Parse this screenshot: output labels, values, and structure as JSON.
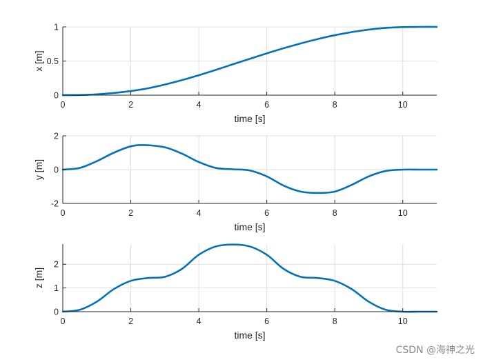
{
  "chart_data": [
    {
      "type": "line",
      "xlabel": "time [s]",
      "ylabel": "x [m]",
      "xlim": [
        0,
        11
      ],
      "ylim": [
        0,
        1
      ],
      "xticks": [
        0,
        2,
        4,
        6,
        8,
        10
      ],
      "yticks": [
        0,
        0.5,
        1
      ],
      "grid": true,
      "series": [
        {
          "color": "#d95319",
          "x": [
            0,
            0.5,
            1,
            1.5,
            2,
            2.5,
            3,
            3.5,
            4,
            4.5,
            5,
            5.5,
            6,
            6.5,
            7,
            7.5,
            8,
            8.5,
            9,
            9.5,
            10,
            10.5,
            11
          ],
          "y": [
            0,
            0.002,
            0.012,
            0.032,
            0.06,
            0.1,
            0.155,
            0.22,
            0.292,
            0.37,
            0.452,
            0.532,
            0.612,
            0.688,
            0.758,
            0.822,
            0.878,
            0.924,
            0.96,
            0.985,
            0.997,
            1.0,
            1.0
          ]
        },
        {
          "color": "#0072bd",
          "x": [
            0,
            0.5,
            1,
            1.5,
            2,
            2.5,
            3,
            3.5,
            4,
            4.5,
            5,
            5.5,
            6,
            6.5,
            7,
            7.5,
            8,
            8.5,
            9,
            9.5,
            10,
            10.5,
            11
          ],
          "y": [
            0,
            0.002,
            0.012,
            0.032,
            0.06,
            0.1,
            0.155,
            0.22,
            0.292,
            0.37,
            0.452,
            0.532,
            0.612,
            0.688,
            0.758,
            0.822,
            0.878,
            0.924,
            0.96,
            0.985,
            0.997,
            1.0,
            1.0
          ]
        }
      ]
    },
    {
      "type": "line",
      "xlabel": "time [s]",
      "ylabel": "y [m]",
      "xlim": [
        0,
        11
      ],
      "ylim": [
        -2,
        2
      ],
      "xticks": [
        0,
        2,
        4,
        6,
        8,
        10
      ],
      "yticks": [
        -2,
        0,
        2
      ],
      "grid": true,
      "series": [
        {
          "color": "#d95319",
          "x": [
            0,
            0.5,
            1,
            1.5,
            2,
            2.4,
            3,
            3.5,
            4,
            4.5,
            5,
            5.5,
            6,
            6.5,
            7,
            7.5,
            8,
            8.5,
            9,
            9.5,
            10,
            10.5,
            11
          ],
          "y": [
            0,
            0.1,
            0.5,
            1.0,
            1.38,
            1.45,
            1.32,
            0.95,
            0.45,
            0.1,
            0.02,
            -0.05,
            -0.4,
            -0.95,
            -1.3,
            -1.38,
            -1.3,
            -0.9,
            -0.4,
            -0.08,
            0,
            0,
            0
          ]
        },
        {
          "color": "#0072bd",
          "x": [
            0,
            0.5,
            1,
            1.5,
            2,
            2.4,
            3,
            3.5,
            4,
            4.5,
            5,
            5.5,
            6,
            6.5,
            7,
            7.5,
            8,
            8.5,
            9,
            9.5,
            10,
            10.5,
            11
          ],
          "y": [
            0,
            0.1,
            0.5,
            1.0,
            1.38,
            1.45,
            1.32,
            0.95,
            0.45,
            0.1,
            0.02,
            -0.05,
            -0.4,
            -0.95,
            -1.3,
            -1.38,
            -1.3,
            -0.9,
            -0.4,
            -0.08,
            0,
            0,
            0
          ]
        }
      ]
    },
    {
      "type": "line",
      "xlabel": "time [s]",
      "ylabel": "z [m]",
      "xlim": [
        0,
        11
      ],
      "ylim": [
        0,
        2.85
      ],
      "xticks": [
        0,
        2,
        4,
        6,
        8,
        10
      ],
      "yticks": [
        0,
        1,
        2
      ],
      "grid": true,
      "series": [
        {
          "color": "#d95319",
          "x": [
            0,
            0.5,
            1,
            1.5,
            2,
            2.5,
            3,
            3.5,
            4,
            4.5,
            5,
            5.5,
            6,
            6.5,
            7,
            7.5,
            8,
            8.5,
            9,
            9.5,
            10,
            10.5,
            11
          ],
          "y": [
            0,
            0.08,
            0.42,
            0.95,
            1.3,
            1.42,
            1.47,
            1.8,
            2.4,
            2.75,
            2.83,
            2.75,
            2.4,
            1.8,
            1.47,
            1.42,
            1.3,
            0.95,
            0.42,
            0.08,
            0,
            0,
            0
          ]
        },
        {
          "color": "#0072bd",
          "x": [
            0,
            0.5,
            1,
            1.5,
            2,
            2.5,
            3,
            3.5,
            4,
            4.5,
            5,
            5.5,
            6,
            6.5,
            7,
            7.5,
            8,
            8.5,
            9,
            9.5,
            10,
            10.5,
            11
          ],
          "y": [
            0,
            0.08,
            0.42,
            0.95,
            1.3,
            1.42,
            1.47,
            1.8,
            2.4,
            2.75,
            2.83,
            2.75,
            2.4,
            1.8,
            1.47,
            1.42,
            1.3,
            0.95,
            0.42,
            0.08,
            0,
            0,
            0
          ]
        }
      ]
    }
  ],
  "watermark": "CSDN @海神之光"
}
